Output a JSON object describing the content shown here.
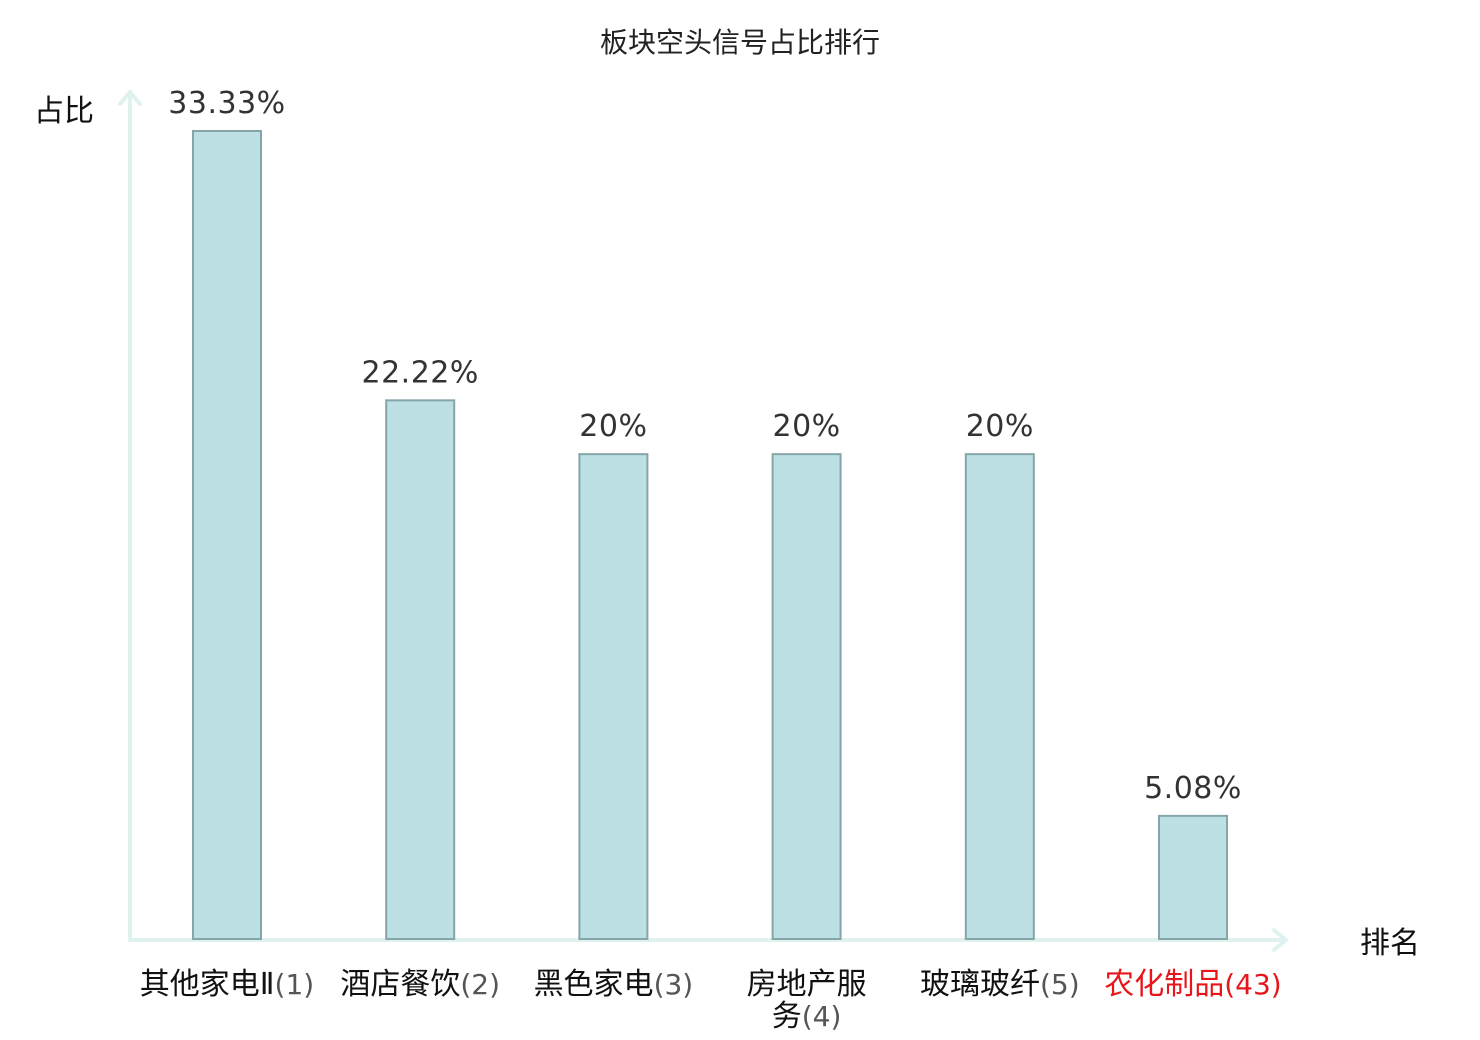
{
  "chart_data": {
    "type": "bar",
    "title": "板块空头信号占比排行",
    "xlabel": "排名",
    "ylabel": "占比",
    "ylim": [
      0,
      33.33
    ],
    "grid": false,
    "legend": "none",
    "categories": [
      {
        "name": "其他家电Ⅱ",
        "rank": "(1)",
        "value": 33.33,
        "value_label": "33.33%",
        "highlight": false
      },
      {
        "name": "酒店餐饮",
        "rank": "(2)",
        "value": 22.22,
        "value_label": "22.22%",
        "highlight": false
      },
      {
        "name": "黑色家电",
        "rank": "(3)",
        "value": 20,
        "value_label": "20%",
        "highlight": false
      },
      {
        "name": "房地产服务",
        "rank": "(4)",
        "value": 20,
        "value_label": "20%",
        "highlight": false
      },
      {
        "name": "玻璃玻纤",
        "rank": "(5)",
        "value": 20,
        "value_label": "20%",
        "highlight": false
      },
      {
        "name": "农化制品",
        "rank": "(43)",
        "value": 5.08,
        "value_label": "5.08%",
        "highlight": true
      }
    ],
    "colors": {
      "bar_fill": "#bce0e3",
      "bar_stroke": "#86a5a8",
      "axis": "#e0f2ef",
      "highlight": "#e8161b"
    }
  }
}
